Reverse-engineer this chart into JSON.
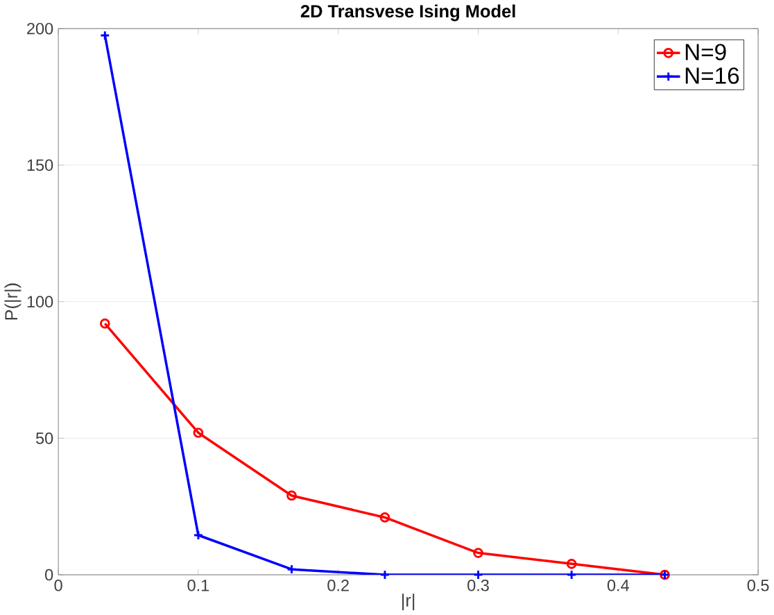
{
  "chart_data": {
    "type": "line",
    "title": "2D Transvese Ising Model",
    "xlabel": "|r|",
    "ylabel": "P(|r|)",
    "x": [
      0.0333,
      0.1,
      0.1667,
      0.2333,
      0.3,
      0.3667,
      0.4333
    ],
    "series": [
      {
        "name": "N=9",
        "color": "#ff0000",
        "marker": "circle",
        "values": [
          92,
          52,
          29,
          21,
          8,
          4,
          0
        ]
      },
      {
        "name": "N=16",
        "color": "#0000ff",
        "marker": "cross",
        "values": [
          197.5,
          14.5,
          2,
          0,
          0,
          0,
          0
        ]
      }
    ],
    "xlim": [
      0,
      0.5
    ],
    "ylim": [
      0,
      200
    ],
    "xticks": [
      0,
      0.1,
      0.2,
      0.3,
      0.4,
      0.5
    ],
    "yticks": [
      0,
      50,
      100,
      150,
      200
    ],
    "grid": "y",
    "legend": "top right",
    "line_style": "solid"
  }
}
